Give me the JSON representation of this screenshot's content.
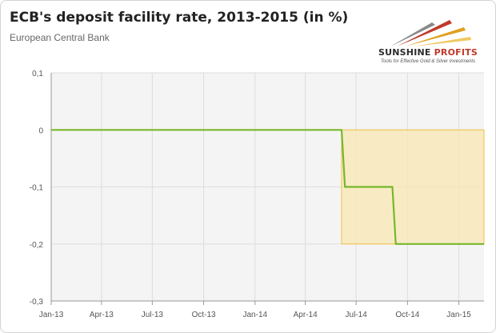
{
  "header": {
    "title": "ECB's deposit facility rate, 2013-2015 (in %)",
    "subtitle": "European Central Bank"
  },
  "logo": {
    "name_part1": "SUNSHINE",
    "name_part2": "PROFITS",
    "tagline": "Tools for Effective Gold & Silver Investments"
  },
  "colors": {
    "line": "#76b82a",
    "highlight_fill": "#f9e9b8",
    "highlight_stroke": "#f0c040",
    "grid": "#dddddd",
    "plot_bg": "#f4f4f4"
  },
  "chart_data": {
    "type": "line",
    "title": "ECB's deposit facility rate, 2013-2015 (in %)",
    "subtitle": "European Central Bank",
    "x_tick_labels": [
      "Jan-13",
      "Apr-13",
      "Jul-13",
      "Oct-13",
      "Jan-14",
      "Apr-14",
      "Jul-14",
      "Oct-14",
      "Jan-15"
    ],
    "y_tick_labels": [
      "0,1",
      "0",
      "-0,1",
      "-0,2",
      "-0,3"
    ],
    "y_ticks": [
      0.1,
      0,
      -0.1,
      -0.2,
      -0.3
    ],
    "ylim": [
      -0.3,
      0.1
    ],
    "xlim": [
      "2013-01-01",
      "2015-02-15"
    ],
    "grid": true,
    "legend": "none",
    "series": [
      {
        "x": [
          "2013-01-01",
          "2014-06-05",
          "2014-06-11",
          "2014-09-04",
          "2014-09-10",
          "2015-02-15"
        ],
        "y": [
          0,
          0,
          -0.1,
          -0.1,
          -0.2,
          -0.2
        ]
      }
    ],
    "highlight": {
      "x_start": "2014-06-05",
      "x_end": "2015-02-15",
      "y_top": 0,
      "y_bottom": -0.2
    }
  }
}
